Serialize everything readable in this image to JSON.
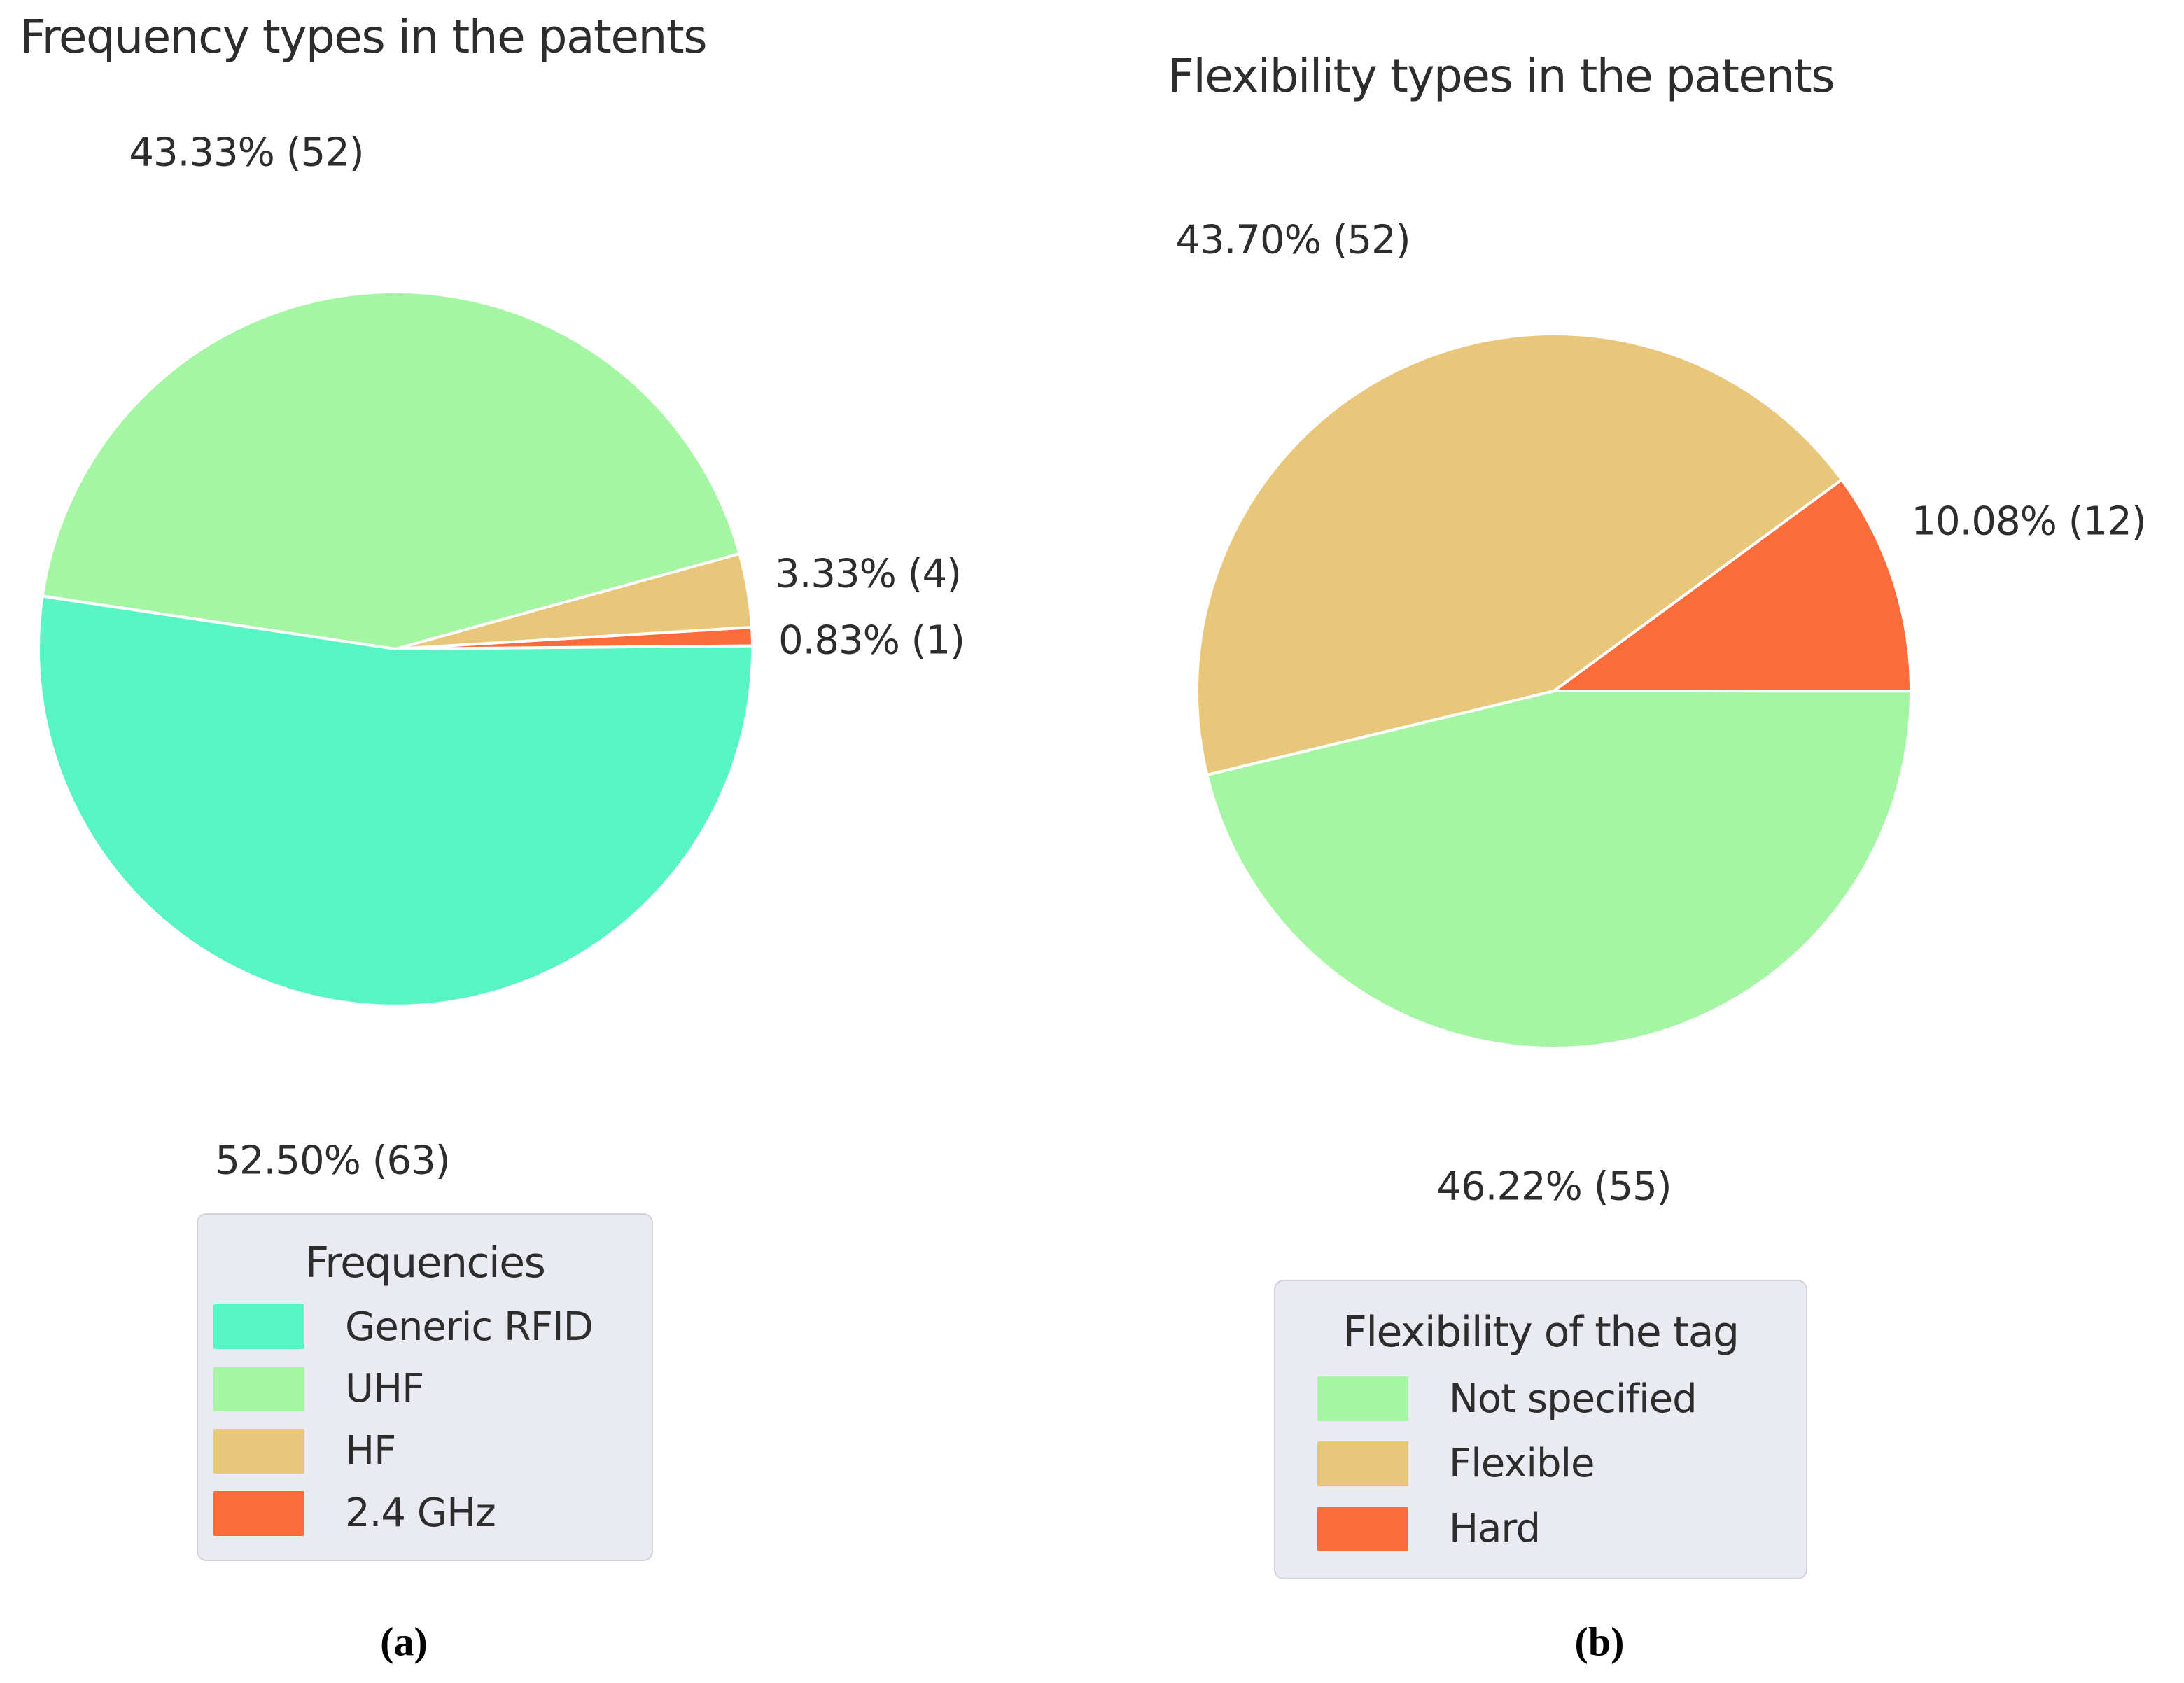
{
  "figure": {
    "background": "#ffffff",
    "text_color": "#2d2d2d",
    "legend_background": "#eaeaf2"
  },
  "chart_data": [
    {
      "type": "pie",
      "title": "Frequency types in the patents",
      "caption": "(a)",
      "legend": {
        "title": "Frequencies",
        "position": "bottom-left"
      },
      "slices": [
        {
          "label": "Generic RFID",
          "value": 63,
          "percent": 52.5,
          "pct_label": "52.50% (63)",
          "color": "#58f5c4"
        },
        {
          "label": "UHF",
          "value": 52,
          "percent": 43.33,
          "pct_label": "43.33% (52)",
          "color": "#a5f6a3"
        },
        {
          "label": "HF",
          "value": 4,
          "percent": 3.33,
          "pct_label": "3.33% (4)",
          "color": "#e9c77a"
        },
        {
          "label": "2.4 GHz",
          "value": 1,
          "percent": 0.83,
          "pct_label": "0.83% (1)",
          "color": "#fb6c3b"
        }
      ]
    },
    {
      "type": "pie",
      "title": "Flexibility types in the patents",
      "caption": "(b)",
      "legend": {
        "title": "Flexibility of the tag",
        "position": "bottom"
      },
      "slices": [
        {
          "label": "Not specified",
          "value": 55,
          "percent": 46.22,
          "pct_label": "46.22% (55)",
          "color": "#a5f6a3"
        },
        {
          "label": "Flexible",
          "value": 52,
          "percent": 43.7,
          "pct_label": "43.70% (52)",
          "color": "#e9c77a"
        },
        {
          "label": "Hard",
          "value": 12,
          "percent": 10.08,
          "pct_label": "10.08% (12)",
          "color": "#fb6c3b"
        }
      ]
    }
  ]
}
